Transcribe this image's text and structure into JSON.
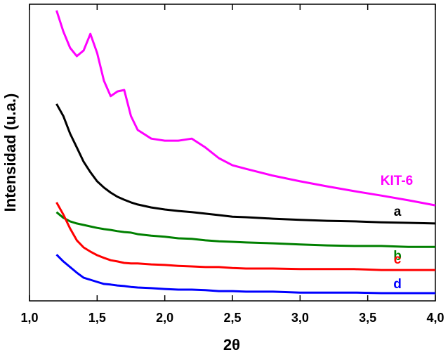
{
  "chart_data": {
    "type": "line",
    "x_label": "2θ",
    "y_label": "Intensidad (u.a.)",
    "x": [
      1.2,
      1.25,
      1.3,
      1.35,
      1.4,
      1.45,
      1.5,
      1.55,
      1.6,
      1.65,
      1.7,
      1.75,
      1.8,
      1.9,
      2.0,
      2.1,
      2.2,
      2.3,
      2.4,
      2.5,
      2.6,
      2.8,
      3.0,
      3.2,
      3.4,
      3.6,
      3.8,
      4.0
    ],
    "series": [
      {
        "name": "KIT-6",
        "color": "#ff00ff",
        "values": [
          97.9,
          90.8,
          85.3,
          82.5,
          84.4,
          90.0,
          83.6,
          74.2,
          69.0,
          70.6,
          71.1,
          62.3,
          57.6,
          54.7,
          54.0,
          54.0,
          54.7,
          51.7,
          48.1,
          45.7,
          44.5,
          42.2,
          40.3,
          38.6,
          37.0,
          35.5,
          33.9,
          32.2
        ]
      },
      {
        "name": "a",
        "color": "#000000",
        "values": [
          66.4,
          62.3,
          56.4,
          51.7,
          46.9,
          43.4,
          40.3,
          38.2,
          36.5,
          35.1,
          34.1,
          33.2,
          32.5,
          31.5,
          30.8,
          30.3,
          29.9,
          29.4,
          28.9,
          28.4,
          28.2,
          27.7,
          27.3,
          27.0,
          26.8,
          26.5,
          26.3,
          26.1
        ]
      },
      {
        "name": "b",
        "color": "#008000",
        "values": [
          29.9,
          28.0,
          26.8,
          26.1,
          25.6,
          25.1,
          24.6,
          24.2,
          23.9,
          23.5,
          23.2,
          23.0,
          22.5,
          22.0,
          21.6,
          21.1,
          20.9,
          20.4,
          20.1,
          19.9,
          19.7,
          19.4,
          19.0,
          18.7,
          18.5,
          18.5,
          18.2,
          18.2
        ]
      },
      {
        "name": "c",
        "color": "#ff0000",
        "values": [
          33.2,
          29.1,
          24.4,
          20.4,
          18.0,
          16.6,
          15.4,
          14.5,
          13.7,
          13.3,
          12.8,
          12.6,
          12.6,
          12.3,
          12.1,
          11.8,
          11.6,
          11.4,
          11.4,
          11.1,
          10.9,
          10.9,
          10.7,
          10.7,
          10.7,
          10.4,
          10.4,
          10.4
        ]
      },
      {
        "name": "d",
        "color": "#0000ff",
        "values": [
          15.6,
          13.3,
          11.4,
          9.5,
          7.8,
          7.1,
          6.4,
          5.7,
          5.5,
          5.2,
          5.0,
          4.7,
          4.5,
          4.3,
          4.0,
          3.8,
          3.8,
          3.6,
          3.3,
          3.3,
          3.1,
          3.1,
          2.8,
          2.8,
          2.8,
          2.6,
          2.6,
          2.6
        ]
      }
    ],
    "xlim": [
      1.0,
      4.0
    ],
    "xticks": [
      {
        "value": 1.0,
        "label": "1,0"
      },
      {
        "value": 1.5,
        "label": "1,5"
      },
      {
        "value": 2.0,
        "label": "2,0"
      },
      {
        "value": 2.5,
        "label": "2,5"
      },
      {
        "value": 3.0,
        "label": "3,0"
      },
      {
        "value": 3.5,
        "label": "3,5"
      },
      {
        "value": 4.0,
        "label": "4,0"
      }
    ],
    "ylim": [
      0,
      100
    ]
  }
}
